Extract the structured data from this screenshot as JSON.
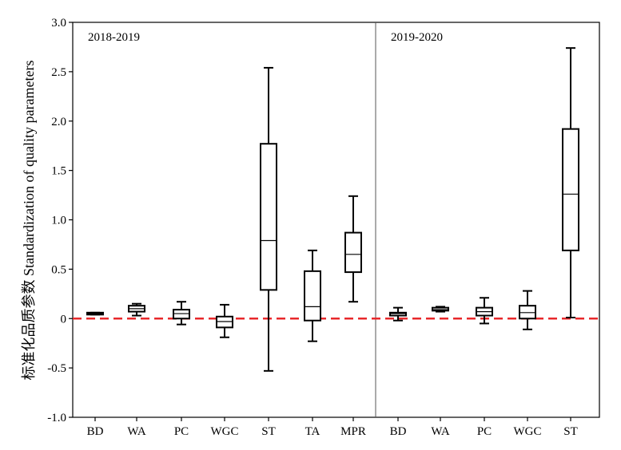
{
  "chart_data": {
    "type": "box",
    "ylabel": "标准化品质参数 Standardization of quality parameters",
    "ylim": [
      -1.0,
      3.0
    ],
    "yticks": [
      "3.0",
      "2.5",
      "2.0",
      "1.5",
      "1.0",
      "0.5",
      "0",
      "-0.5",
      "-1.0"
    ],
    "ytick_values": [
      3.0,
      2.5,
      2.0,
      1.5,
      1.0,
      0.5,
      0.0,
      -0.5,
      -1.0
    ],
    "reference_line": {
      "y": 0,
      "style": "dashed",
      "color": "#e8282b"
    },
    "panels": [
      {
        "label": "2018-2019",
        "categories": [
          "BD",
          "WA",
          "PC",
          "WGC",
          "ST",
          "TA",
          "MPR"
        ],
        "boxes": [
          {
            "min": 0.04,
            "q1": 0.04,
            "median": 0.05,
            "q3": 0.06,
            "max": 0.06
          },
          {
            "min": 0.03,
            "q1": 0.07,
            "median": 0.1,
            "q3": 0.13,
            "max": 0.15
          },
          {
            "min": -0.06,
            "q1": 0.0,
            "median": 0.05,
            "q3": 0.09,
            "max": 0.17
          },
          {
            "min": -0.19,
            "q1": -0.09,
            "median": -0.03,
            "q3": 0.02,
            "max": 0.14
          },
          {
            "min": -0.53,
            "q1": 0.29,
            "median": 0.79,
            "q3": 1.77,
            "max": 2.54
          },
          {
            "min": -0.23,
            "q1": -0.02,
            "median": 0.12,
            "q3": 0.48,
            "max": 0.69
          },
          {
            "min": 0.17,
            "q1": 0.47,
            "median": 0.65,
            "q3": 0.87,
            "max": 1.24
          }
        ]
      },
      {
        "label": "2019-2020",
        "categories": [
          "BD",
          "WA",
          "PC",
          "WGC",
          "ST"
        ],
        "boxes": [
          {
            "min": -0.02,
            "q1": 0.03,
            "median": 0.05,
            "q3": 0.06,
            "max": 0.11
          },
          {
            "min": 0.07,
            "q1": 0.08,
            "median": 0.09,
            "q3": 0.11,
            "max": 0.12
          },
          {
            "min": -0.05,
            "q1": 0.03,
            "median": 0.07,
            "q3": 0.11,
            "max": 0.21
          },
          {
            "min": -0.11,
            "q1": 0.0,
            "median": 0.06,
            "q3": 0.13,
            "max": 0.28
          },
          {
            "min": 0.01,
            "q1": 0.69,
            "median": 1.26,
            "q3": 1.92,
            "max": 2.74
          }
        ]
      }
    ]
  }
}
